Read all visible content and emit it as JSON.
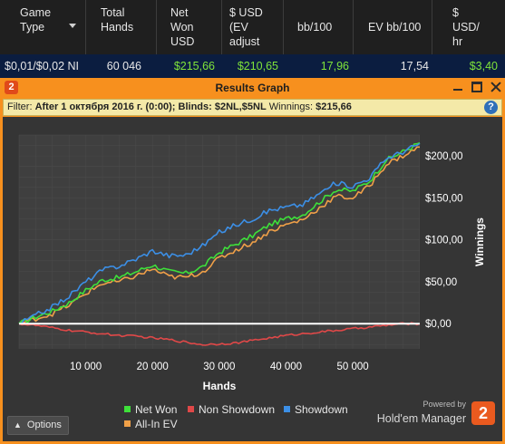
{
  "stats_table": {
    "headers": [
      {
        "lines": [
          "Game",
          "Type"
        ],
        "sort_icon": "chevron-down-icon"
      },
      {
        "lines": [
          "Total",
          "Hands"
        ]
      },
      {
        "lines": [
          "Net",
          "Won",
          "USD"
        ]
      },
      {
        "lines": [
          "$ USD",
          "(EV",
          "adjust"
        ]
      },
      {
        "lines": [
          "bb/100"
        ]
      },
      {
        "lines": [
          "EV bb/100"
        ]
      },
      {
        "lines": [
          "$",
          "USD/",
          "hr"
        ]
      }
    ],
    "row": {
      "game_type": "$0,01/$0,02 NI",
      "total_hands": "60 046",
      "net_won": "$215,66",
      "ev_adjusted": "$210,65",
      "bb100": "17,96",
      "ev_bb100": "17,54",
      "usd_hr": "$3,40"
    }
  },
  "window": {
    "title": "Results Graph",
    "logo_text": "2",
    "filter": {
      "label": "Filter:",
      "value": "After 1 октября 2016 г. (0:00); Blinds: $2NL,$5NL",
      "winnings_label": "Winnings:",
      "winnings_value": "$215,66",
      "help_icon": "?"
    },
    "options_label": "Options",
    "powered_by": "Powered by",
    "brand": "Hold'em Manager",
    "brand_badge": "2"
  },
  "colors": {
    "net_won": "#3ee03a",
    "non_showdown": "#e04848",
    "showdown": "#3c8fe6",
    "all_in_ev": "#f0a048",
    "zero_line": "#ffffff",
    "accent": "#f7901e"
  },
  "chart_data": {
    "type": "line",
    "xlabel": "Hands",
    "ylabel": "Winnings",
    "xlim": [
      0,
      60046
    ],
    "ylim": [
      -30,
      225
    ],
    "x_ticks": [
      10000,
      20000,
      30000,
      40000,
      50000
    ],
    "x_tick_labels": [
      "10 000",
      "20 000",
      "30 000",
      "40 000",
      "50 000"
    ],
    "y_ticks": [
      0,
      50,
      100,
      150,
      200
    ],
    "y_tick_labels": [
      "$0,00",
      "$50,00",
      "$100,00",
      "$150,00",
      "$200,00"
    ],
    "grid": true,
    "legend": "bottom-center",
    "x": [
      0,
      2500,
      5000,
      7500,
      10000,
      12500,
      15000,
      17500,
      20000,
      22500,
      25000,
      27500,
      30000,
      32500,
      35000,
      37500,
      40000,
      42500,
      45000,
      47500,
      50000,
      52500,
      55000,
      57500,
      60046
    ],
    "series": [
      {
        "name": "Net Won",
        "color": "#3ee03a",
        "values": [
          0,
          8,
          15,
          25,
          40,
          52,
          55,
          62,
          70,
          62,
          60,
          68,
          85,
          95,
          105,
          118,
          125,
          130,
          145,
          160,
          158,
          170,
          195,
          205,
          215.66
        ]
      },
      {
        "name": "Non Showdown",
        "color": "#e04848",
        "values": [
          0,
          -2,
          -5,
          -8,
          -10,
          -12,
          -14,
          -15,
          -17,
          -19,
          -22,
          -25,
          -24,
          -23,
          -20,
          -17,
          -14,
          -12,
          -10,
          -8,
          -6,
          -4,
          -2,
          0,
          0
        ]
      },
      {
        "name": "Showdown",
        "color": "#3c8fe6",
        "values": [
          0,
          10,
          20,
          33,
          50,
          64,
          69,
          77,
          87,
          81,
          82,
          93,
          109,
          118,
          125,
          135,
          139,
          142,
          155,
          168,
          164,
          174,
          197,
          205,
          215
        ]
      },
      {
        "name": "All-In EV",
        "color": "#f0a048",
        "values": [
          0,
          6,
          12,
          22,
          36,
          48,
          50,
          57,
          65,
          56,
          55,
          62,
          78,
          88,
          97,
          110,
          118,
          124,
          138,
          152,
          150,
          164,
          190,
          200,
          210.65
        ]
      }
    ]
  }
}
